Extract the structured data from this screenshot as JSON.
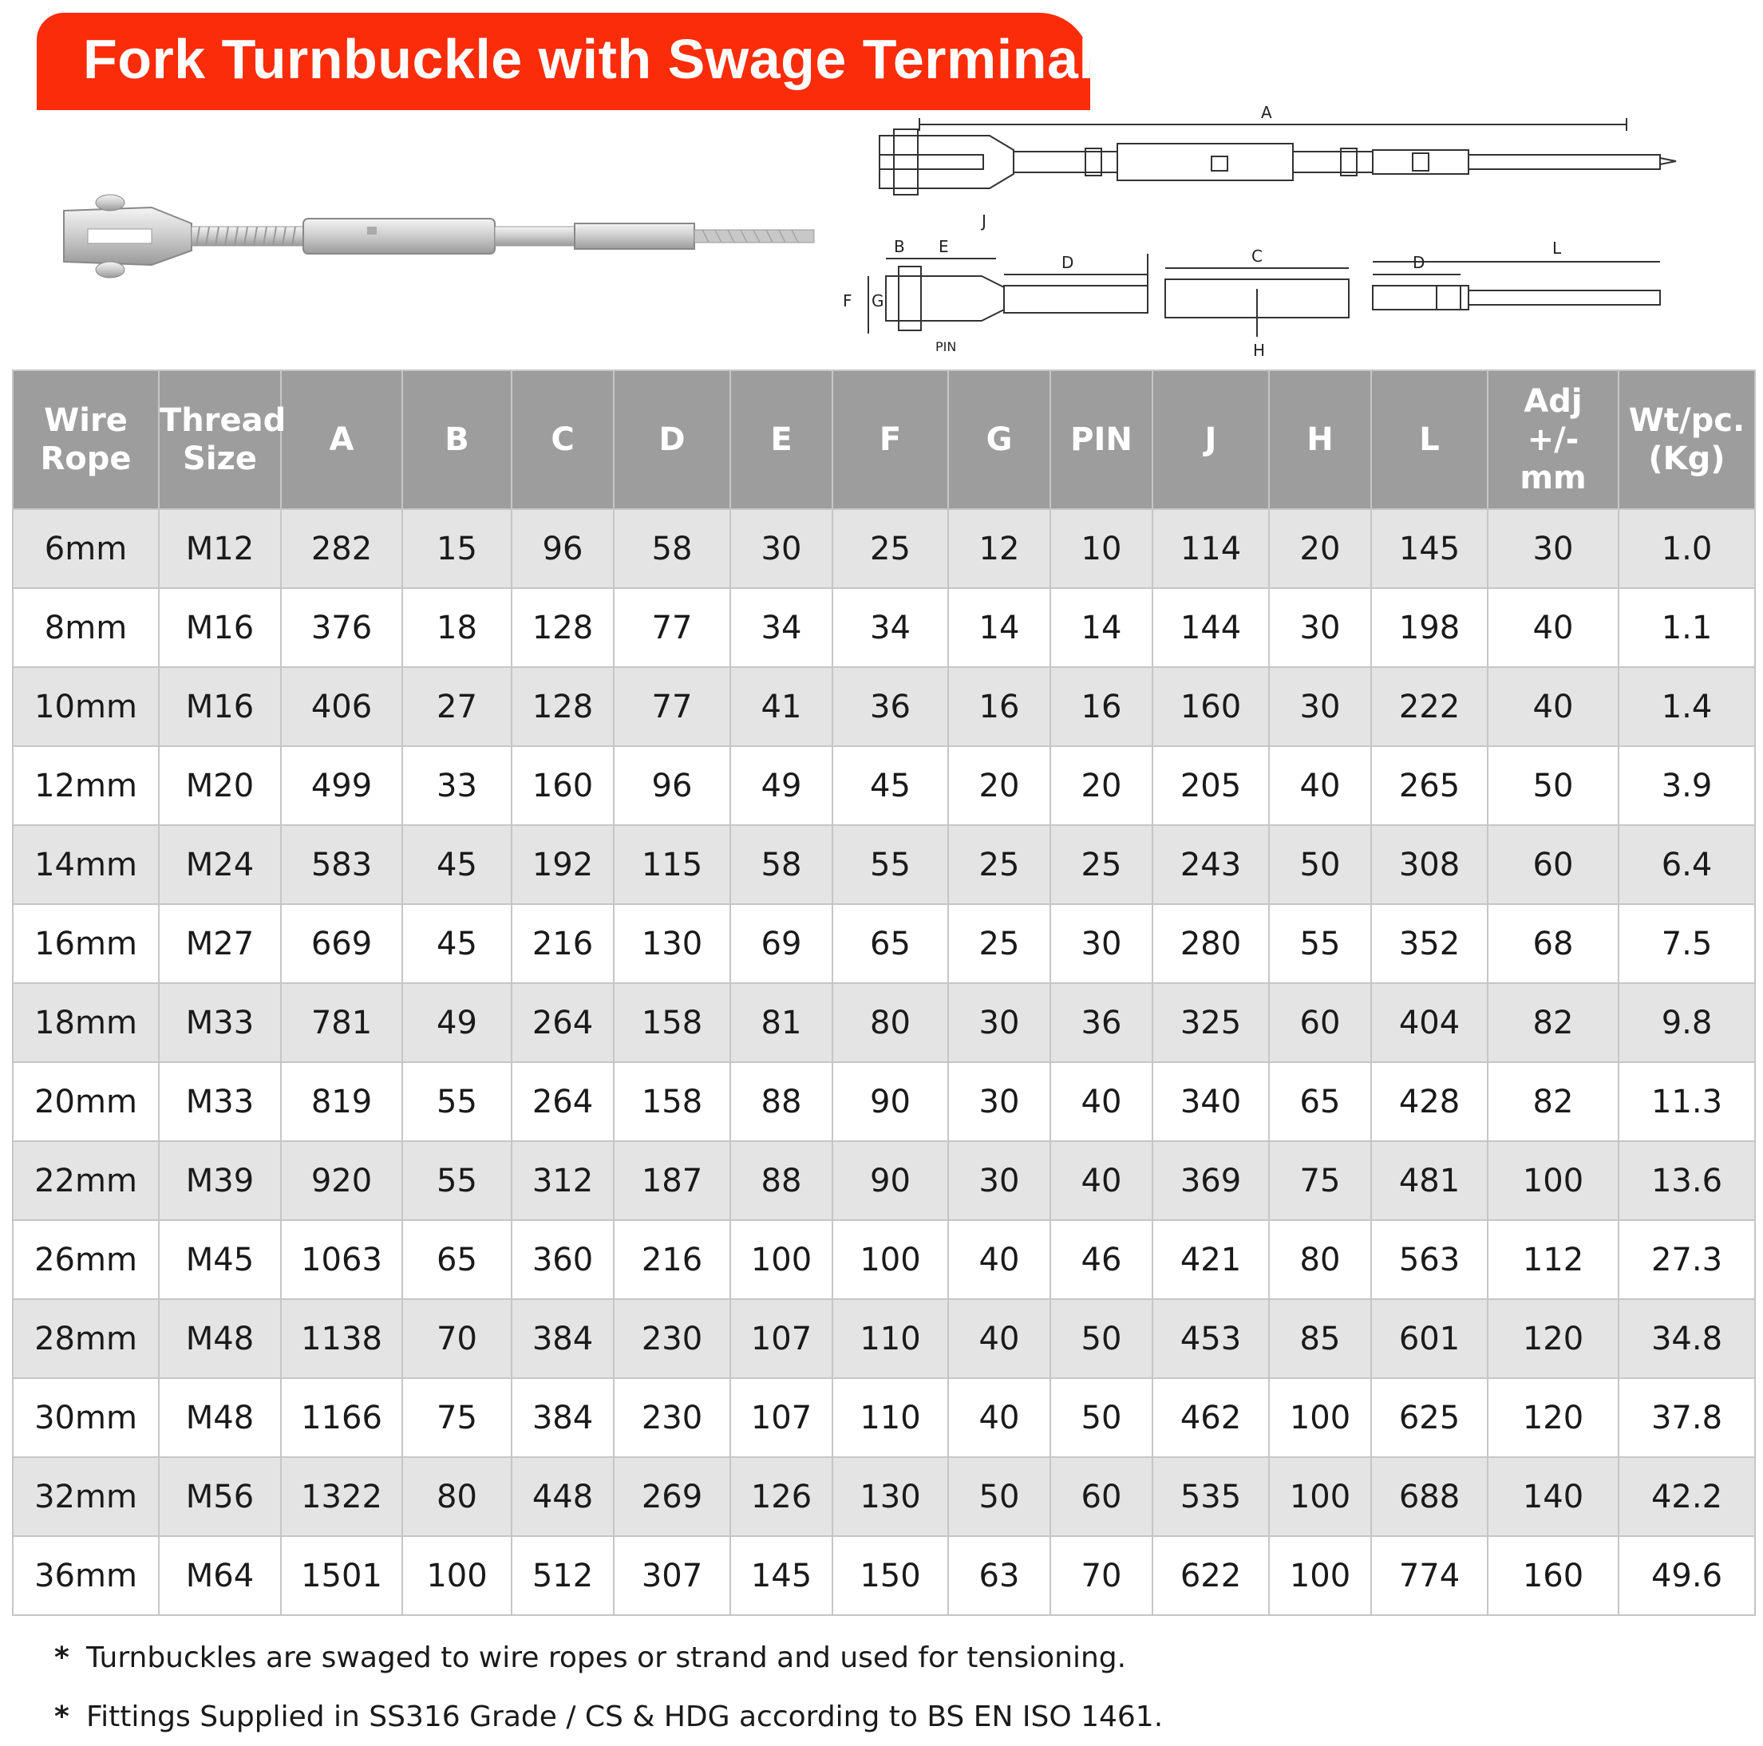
{
  "title": "Fork Turnbuckle with Swage Terminal",
  "colors": {
    "banner": "#fb2c0a",
    "header_bg": "#9d9d9d",
    "row_alt": "#e4e4e4"
  },
  "diagram_labels": {
    "A": "A",
    "J": "J",
    "B": "B",
    "E": "E",
    "D1": "D",
    "F": "F",
    "G": "G",
    "PIN": "PIN",
    "C": "C",
    "H": "H",
    "L": "L",
    "D2": "D"
  },
  "table": {
    "headers": [
      [
        "Wire",
        "Rope"
      ],
      [
        "Thread",
        "Size"
      ],
      [
        "A"
      ],
      [
        "B"
      ],
      [
        "C"
      ],
      [
        "D"
      ],
      [
        "E"
      ],
      [
        "F"
      ],
      [
        "G"
      ],
      [
        "PIN"
      ],
      [
        "J"
      ],
      [
        "H"
      ],
      [
        "L"
      ],
      [
        "Adj",
        "+/-",
        "mm"
      ],
      [
        "Wt/pc.",
        "(Kg)"
      ]
    ],
    "rows": [
      [
        "6mm",
        "M12",
        "282",
        "15",
        "96",
        "58",
        "30",
        "25",
        "12",
        "10",
        "114",
        "20",
        "145",
        "30",
        "1.0"
      ],
      [
        "8mm",
        "M16",
        "376",
        "18",
        "128",
        "77",
        "34",
        "34",
        "14",
        "14",
        "144",
        "30",
        "198",
        "40",
        "1.1"
      ],
      [
        "10mm",
        "M16",
        "406",
        "27",
        "128",
        "77",
        "41",
        "36",
        "16",
        "16",
        "160",
        "30",
        "222",
        "40",
        "1.4"
      ],
      [
        "12mm",
        "M20",
        "499",
        "33",
        "160",
        "96",
        "49",
        "45",
        "20",
        "20",
        "205",
        "40",
        "265",
        "50",
        "3.9"
      ],
      [
        "14mm",
        "M24",
        "583",
        "45",
        "192",
        "115",
        "58",
        "55",
        "25",
        "25",
        "243",
        "50",
        "308",
        "60",
        "6.4"
      ],
      [
        "16mm",
        "M27",
        "669",
        "45",
        "216",
        "130",
        "69",
        "65",
        "25",
        "30",
        "280",
        "55",
        "352",
        "68",
        "7.5"
      ],
      [
        "18mm",
        "M33",
        "781",
        "49",
        "264",
        "158",
        "81",
        "80",
        "30",
        "36",
        "325",
        "60",
        "404",
        "82",
        "9.8"
      ],
      [
        "20mm",
        "M33",
        "819",
        "55",
        "264",
        "158",
        "88",
        "90",
        "30",
        "40",
        "340",
        "65",
        "428",
        "82",
        "11.3"
      ],
      [
        "22mm",
        "M39",
        "920",
        "55",
        "312",
        "187",
        "88",
        "90",
        "30",
        "40",
        "369",
        "75",
        "481",
        "100",
        "13.6"
      ],
      [
        "26mm",
        "M45",
        "1063",
        "65",
        "360",
        "216",
        "100",
        "100",
        "40",
        "46",
        "421",
        "80",
        "563",
        "112",
        "27.3"
      ],
      [
        "28mm",
        "M48",
        "1138",
        "70",
        "384",
        "230",
        "107",
        "110",
        "40",
        "50",
        "453",
        "85",
        "601",
        "120",
        "34.8"
      ],
      [
        "30mm",
        "M48",
        "1166",
        "75",
        "384",
        "230",
        "107",
        "110",
        "40",
        "50",
        "462",
        "100",
        "625",
        "120",
        "37.8"
      ],
      [
        "32mm",
        "M56",
        "1322",
        "80",
        "448",
        "269",
        "126",
        "130",
        "50",
        "60",
        "535",
        "100",
        "688",
        "140",
        "42.2"
      ],
      [
        "36mm",
        "M64",
        "1501",
        "100",
        "512",
        "307",
        "145",
        "150",
        "63",
        "70",
        "622",
        "100",
        "774",
        "160",
        "49.6"
      ]
    ]
  },
  "notes": [
    {
      "marker": "*",
      "text": "Turnbuckles are swaged to wire ropes or strand and used for tensioning."
    },
    {
      "marker": "*",
      "text": "Fittings Supplied in SS316 Grade / CS & HDG according to BS EN ISO 1461."
    }
  ]
}
